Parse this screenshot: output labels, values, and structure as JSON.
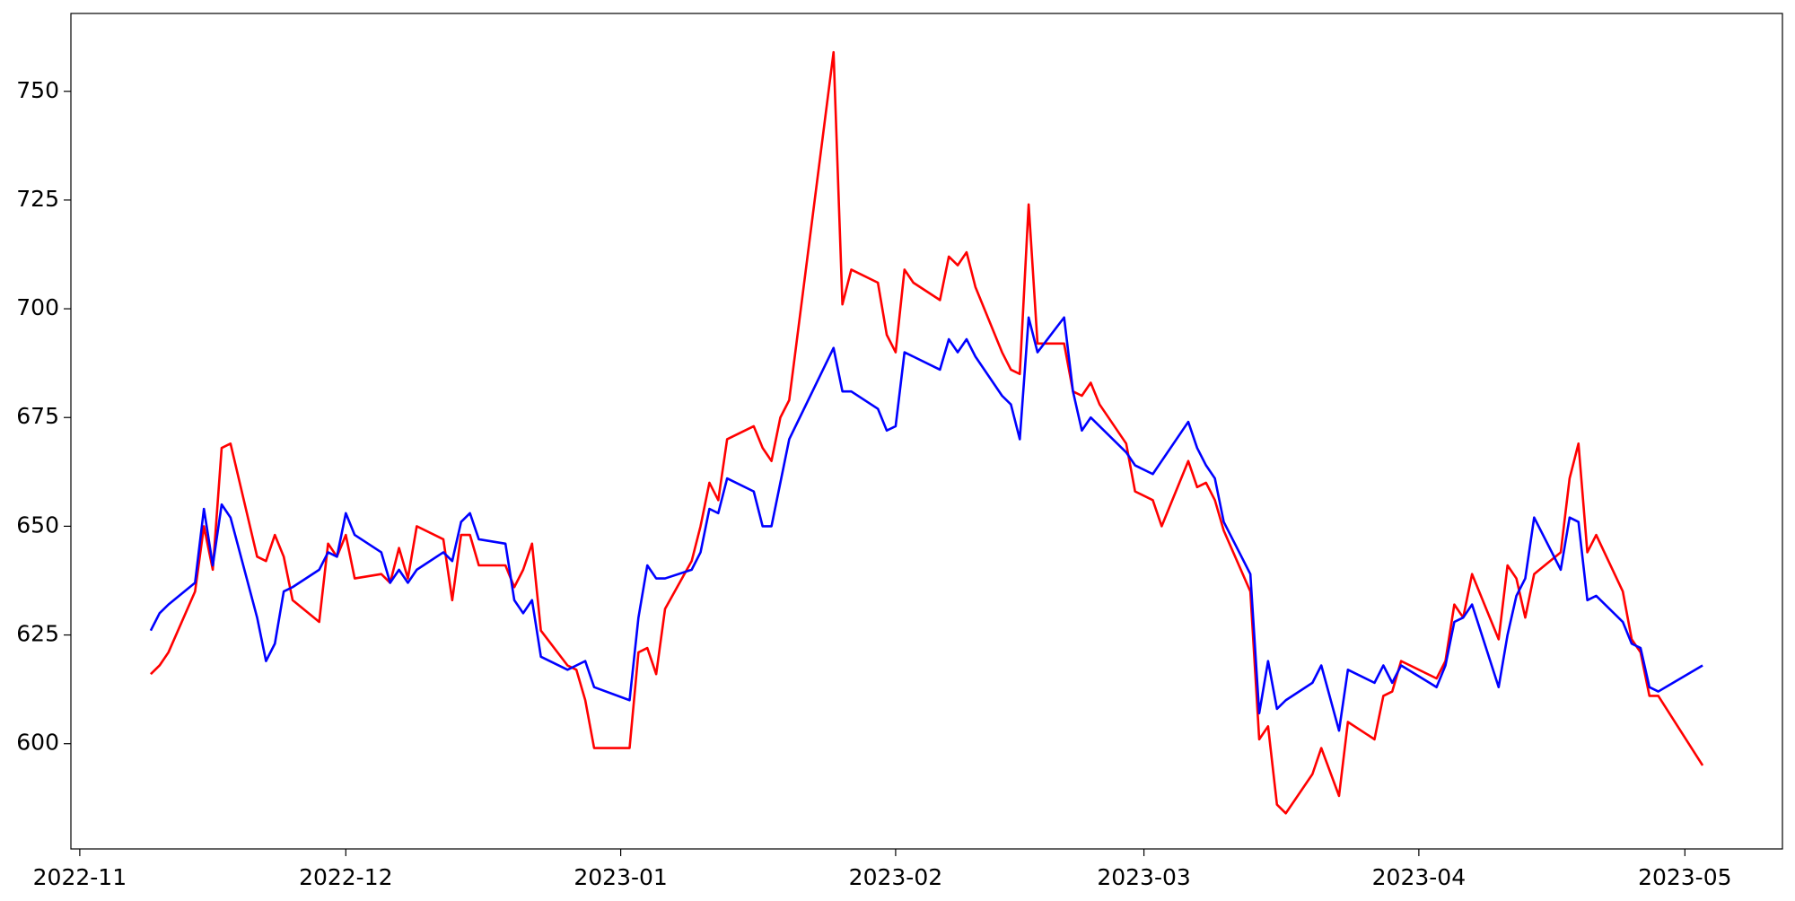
{
  "chart_data": {
    "type": "line",
    "x": [
      "2022-11-09",
      "2022-11-10",
      "2022-11-11",
      "2022-11-14",
      "2022-11-15",
      "2022-11-16",
      "2022-11-17",
      "2022-11-18",
      "2022-11-21",
      "2022-11-22",
      "2022-11-23",
      "2022-11-24",
      "2022-11-25",
      "2022-11-28",
      "2022-11-29",
      "2022-11-30",
      "2022-12-01",
      "2022-12-02",
      "2022-12-05",
      "2022-12-06",
      "2022-12-07",
      "2022-12-08",
      "2022-12-09",
      "2022-12-12",
      "2022-12-13",
      "2022-12-14",
      "2022-12-15",
      "2022-12-16",
      "2022-12-19",
      "2022-12-20",
      "2022-12-21",
      "2022-12-22",
      "2022-12-23",
      "2022-12-26",
      "2022-12-27",
      "2022-12-28",
      "2022-12-29",
      "2023-01-02",
      "2023-01-03",
      "2023-01-04",
      "2023-01-05",
      "2023-01-06",
      "2023-01-09",
      "2023-01-10",
      "2023-01-11",
      "2023-01-12",
      "2023-01-13",
      "2023-01-16",
      "2023-01-17",
      "2023-01-18",
      "2023-01-19",
      "2023-01-20",
      "2023-01-25",
      "2023-01-26",
      "2023-01-27",
      "2023-01-30",
      "2023-01-31",
      "2023-02-01",
      "2023-02-02",
      "2023-02-03",
      "2023-02-06",
      "2023-02-07",
      "2023-02-08",
      "2023-02-09",
      "2023-02-10",
      "2023-02-13",
      "2023-02-14",
      "2023-02-15",
      "2023-02-16",
      "2023-02-17",
      "2023-02-20",
      "2023-02-21",
      "2023-02-22",
      "2023-02-23",
      "2023-02-24",
      "2023-02-27",
      "2023-02-28",
      "2023-03-02",
      "2023-03-03",
      "2023-03-06",
      "2023-03-07",
      "2023-03-08",
      "2023-03-09",
      "2023-03-10",
      "2023-03-13",
      "2023-03-14",
      "2023-03-15",
      "2023-03-16",
      "2023-03-17",
      "2023-03-20",
      "2023-03-21",
      "2023-03-23",
      "2023-03-24",
      "2023-03-27",
      "2023-03-28",
      "2023-03-29",
      "2023-03-30",
      "2023-04-03",
      "2023-04-04",
      "2023-04-05",
      "2023-04-06",
      "2023-04-07",
      "2023-04-10",
      "2023-04-11",
      "2023-04-12",
      "2023-04-13",
      "2023-04-14",
      "2023-04-17",
      "2023-04-18",
      "2023-04-19",
      "2023-04-20",
      "2023-04-21",
      "2023-04-24",
      "2023-04-25",
      "2023-04-26",
      "2023-04-27",
      "2023-04-28",
      "2023-05-03"
    ],
    "series": [
      {
        "color": "#ff0000",
        "values": [
          616,
          618,
          621,
          635,
          650,
          640,
          668,
          669,
          643,
          642,
          648,
          643,
          633,
          628,
          646,
          643,
          648,
          638,
          639,
          637,
          645,
          638,
          650,
          647,
          633,
          648,
          648,
          641,
          641,
          636,
          640,
          646,
          626,
          618,
          617,
          610,
          599,
          599,
          621,
          622,
          616,
          631,
          642,
          650,
          660,
          656,
          670,
          673,
          668,
          665,
          675,
          679,
          759,
          701,
          709,
          706,
          694,
          690,
          709,
          706,
          702,
          712,
          710,
          713,
          705,
          690,
          686,
          685,
          724,
          692,
          692,
          681,
          680,
          683,
          678,
          669,
          658,
          656,
          650,
          665,
          659,
          660,
          656,
          649,
          635,
          601,
          604,
          586,
          584,
          593,
          599,
          588,
          605,
          601,
          611,
          612,
          619,
          615,
          619,
          632,
          629,
          639,
          624,
          641,
          638,
          629,
          639,
          644,
          661,
          669,
          644,
          648,
          635,
          624,
          621,
          611,
          611,
          595
        ]
      },
      {
        "color": "#0000ff",
        "values": [
          626,
          630,
          632,
          637,
          654,
          641,
          655,
          652,
          629,
          619,
          623,
          635,
          636,
          640,
          644,
          643,
          653,
          648,
          644,
          637,
          640,
          637,
          640,
          644,
          642,
          651,
          653,
          647,
          646,
          633,
          630,
          633,
          620,
          617,
          618,
          619,
          613,
          610,
          629,
          641,
          638,
          638,
          640,
          644,
          654,
          653,
          661,
          658,
          650,
          650,
          660,
          670,
          691,
          681,
          681,
          677,
          672,
          673,
          690,
          689,
          686,
          693,
          690,
          693,
          689,
          680,
          678,
          670,
          698,
          690,
          698,
          681,
          672,
          675,
          673,
          667,
          664,
          662,
          665,
          674,
          668,
          664,
          661,
          651,
          639,
          607,
          619,
          608,
          610,
          614,
          618,
          603,
          617,
          614,
          618,
          614,
          618,
          613,
          618,
          628,
          629,
          632,
          613,
          625,
          634,
          638,
          652,
          640,
          652,
          651,
          633,
          634,
          628,
          623,
          622,
          613,
          612,
          618
        ]
      }
    ],
    "xlim": [
      "2022-10-31",
      "2023-05-12"
    ],
    "xticks": [
      {
        "value": "2022-11-01",
        "label": "2022-11"
      },
      {
        "value": "2022-12-01",
        "label": "2022-12"
      },
      {
        "value": "2023-01-01",
        "label": "2023-01"
      },
      {
        "value": "2023-02-01",
        "label": "2023-02"
      },
      {
        "value": "2023-03-01",
        "label": "2023-03"
      },
      {
        "value": "2023-04-01",
        "label": "2023-04"
      },
      {
        "value": "2023-05-01",
        "label": "2023-05"
      }
    ],
    "ylim": [
      575.8,
      767.9
    ],
    "yticks": [
      600,
      625,
      650,
      675,
      700,
      725,
      750
    ]
  }
}
